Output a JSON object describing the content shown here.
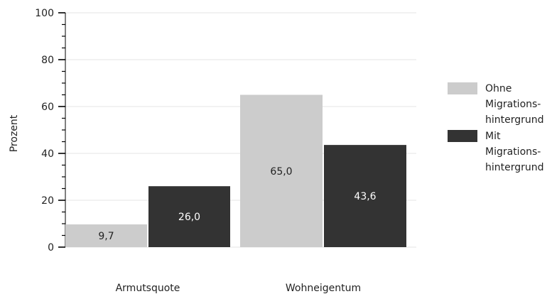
{
  "chart_data": {
    "type": "bar",
    "title": "",
    "xlabel": "",
    "ylabel": "Prozent",
    "ylim": [
      0,
      100
    ],
    "yticks": [
      0,
      20,
      40,
      60,
      80,
      100
    ],
    "grid": true,
    "legend_position": "right",
    "categories": [
      "Armutsquote",
      "Wohneigentum"
    ],
    "series": [
      {
        "name": "Ohne Migrations-hintergrund",
        "legend_lines": [
          "Ohne",
          "Migrations-",
          "hintergrund"
        ],
        "color": "#cccccc",
        "label_color": "#222222",
        "values": [
          9.7,
          65.0
        ],
        "labels": [
          "9,7",
          "65,0"
        ]
      },
      {
        "name": "Mit Migrations-hintergrund",
        "legend_lines": [
          "Mit",
          "Migrations-",
          "hintergrund"
        ],
        "color": "#333333",
        "label_color": "#ffffff",
        "values": [
          26.0,
          43.6
        ],
        "labels": [
          "26,0",
          "43,6"
        ]
      }
    ]
  }
}
